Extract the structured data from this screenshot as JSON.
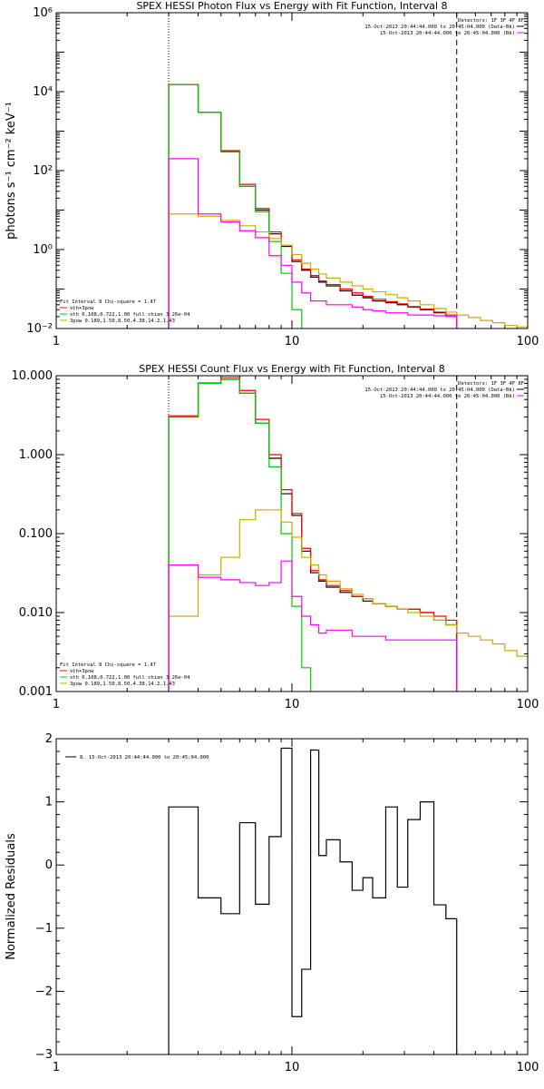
{
  "chart_data": [
    {
      "type": "line",
      "step": true,
      "title": "SPEX HESSI Photon Flux vs Energy with Fit Function, Interval 8",
      "ylabel": "photons s⁻¹ cm⁻² keV⁻¹",
      "xlabel": "",
      "xscale": "log",
      "yscale": "log",
      "xlim": [
        1,
        100
      ],
      "ylim": [
        0.01,
        1000000
      ],
      "xticks": [
        {
          "v": 1,
          "label": "1"
        },
        {
          "v": 10,
          "label": "10"
        },
        {
          "v": 100,
          "label": "100"
        }
      ],
      "yticks": [
        {
          "v": 0.01,
          "label": "10⁻²"
        },
        {
          "v": 1,
          "label": "10⁰"
        },
        {
          "v": 100,
          "label": "10²"
        },
        {
          "v": 10000,
          "label": "10⁴"
        },
        {
          "v": 1000000,
          "label": "10⁶"
        }
      ],
      "vlines": [
        {
          "x": 3,
          "style": "dotted"
        },
        {
          "x": 50,
          "style": "dashed"
        }
      ],
      "legend_tr": {
        "title": "Detectors: 1F 3F 4F 8F",
        "entries": [
          {
            "text": "15-Oct-2013 20:44:44.000 to 20:45:04.000 (Data-Bk)",
            "color": "#000000"
          },
          {
            "text": "15-Oct-2013 20:44:44.000 to 20:45:04.000 (Bk)",
            "color": "#ff00ff"
          }
        ]
      },
      "legend_bl": {
        "title": "Fit Interval 8   Chi-square = 1.47",
        "entries": [
          {
            "text": "vth+3pow",
            "color": "#ff0000"
          },
          {
            "text": "vth 0.108,0.722,1.00  full chian 3.26e-04",
            "color": "#00cc00"
          },
          {
            "text": "3pow 0.189,1.50,8.50,4.38,14.2,1.43",
            "color": "#ccaa00"
          }
        ]
      },
      "edges": [
        3,
        4,
        5,
        6,
        7,
        8,
        9,
        10,
        11,
        12,
        13,
        14,
        16,
        18,
        20,
        22,
        25,
        28,
        31,
        35,
        40,
        45,
        50
      ],
      "series": [
        {
          "name": "15-Oct-2013 20:44:44.000 to 20:45:04.000 (Data-Bk)",
          "color": "#000000",
          "values": [
            15000,
            3000,
            300,
            40,
            10,
            2.5,
            1.2,
            0.5,
            0.3,
            0.2,
            0.15,
            0.12,
            0.09,
            0.07,
            0.06,
            0.05,
            0.045,
            0.04,
            0.035,
            0.03,
            0.025,
            0.02
          ]
        },
        {
          "name": "vth+3pow",
          "color": "#ff0000",
          "values": [
            15000,
            3000,
            320,
            45,
            11,
            2.8,
            1.3,
            0.55,
            0.32,
            0.22,
            0.16,
            0.13,
            0.1,
            0.08,
            0.065,
            0.055,
            0.048,
            0.042,
            0.036,
            0.031,
            0.026,
            0.022
          ]
        },
        {
          "name": "vth",
          "color": "#00cc00",
          "values": [
            15000,
            3000,
            300,
            40,
            9,
            1.6,
            0.25,
            0.03,
            0.005
          ]
        },
        {
          "name": "3pow",
          "color": "#ccaa00",
          "ext_edges": [
            50,
            56,
            63,
            71,
            80,
            90,
            100
          ],
          "values": [
            8,
            7,
            5.5,
            4,
            2.8,
            1.9,
            1.3,
            0.75,
            0.45,
            0.32,
            0.24,
            0.19,
            0.15,
            0.12,
            0.1,
            0.085,
            0.072,
            0.06,
            0.05,
            0.04,
            0.032,
            0.026
          ],
          "ext_values": [
            0.022,
            0.019,
            0.016,
            0.014,
            0.012,
            0.011
          ]
        },
        {
          "name": "15-Oct-2013 20:44:44.000 to 20:45:04.000 (Bk)",
          "color": "#ff00ff",
          "values": [
            200,
            8,
            5,
            3,
            2,
            0.7,
            0.4,
            0.15,
            0.08,
            0.05,
            0.05,
            0.04,
            0.04,
            0.035,
            0.03,
            0.028,
            0.025,
            0.025,
            0.022,
            0.022,
            0.021,
            0.02
          ]
        }
      ]
    },
    {
      "type": "line",
      "step": true,
      "title": "SPEX HESSI Count Flux vs Energy with Fit Function, Interval 8",
      "ylabel": "",
      "xlabel": "",
      "xscale": "log",
      "yscale": "log",
      "xlim": [
        1,
        100
      ],
      "ylim": [
        0.001,
        10
      ],
      "xticks": [
        {
          "v": 1,
          "label": "1"
        },
        {
          "v": 10,
          "label": "10"
        },
        {
          "v": 100,
          "label": "100"
        }
      ],
      "yticks": [
        {
          "v": 0.001,
          "label": "0.001"
        },
        {
          "v": 0.01,
          "label": "0.010"
        },
        {
          "v": 0.1,
          "label": "0.100"
        },
        {
          "v": 1,
          "label": "1.000"
        },
        {
          "v": 10,
          "label": "10.000"
        }
      ],
      "vlines": [
        {
          "x": 3,
          "style": "dotted"
        },
        {
          "x": 50,
          "style": "dashed"
        }
      ],
      "legend_tr": {
        "title": "Detectors: 1F 3F 4F 8F",
        "entries": [
          {
            "text": "15-Oct-2013 20:44:44.000 to 20:45:04.000 (Data-Bk)",
            "color": "#000000"
          },
          {
            "text": "15-Oct-2013 20:44:44.000 to 20:45:04.000 (Bk)",
            "color": "#ff00ff"
          }
        ]
      },
      "legend_bl": {
        "title": "Fit Interval 8   Chi-square = 1.47",
        "entries": [
          {
            "text": "vth+3pow",
            "color": "#ff0000"
          },
          {
            "text": "vth 0.108,0.722,1.00  full chian 3.26e-04",
            "color": "#00cc00"
          },
          {
            "text": "3pow 0.189,1.50,8.50,4.38,14.2,1.43",
            "color": "#ccaa00"
          }
        ]
      },
      "edges": [
        3,
        4,
        5,
        6,
        7,
        8,
        9,
        10,
        11,
        12,
        13,
        14,
        16,
        18,
        20,
        22,
        25,
        28,
        31,
        35,
        40,
        45,
        50
      ],
      "series": [
        {
          "name": "15-Oct-2013 20:44:44.000 to 20:45:04.000 (Data-Bk)",
          "color": "#000000",
          "values": [
            3.0,
            8.0,
            9.0,
            6.0,
            2.5,
            0.9,
            0.32,
            0.17,
            0.06,
            0.032,
            0.025,
            0.021,
            0.018,
            0.016,
            0.014,
            0.013,
            0.012,
            0.011,
            0.011,
            0.01,
            0.008,
            0.007
          ]
        },
        {
          "name": "vth+3pow",
          "color": "#ff0000",
          "values": [
            3.1,
            8.1,
            9.5,
            6.5,
            2.8,
            1.0,
            0.36,
            0.18,
            0.065,
            0.034,
            0.026,
            0.022,
            0.019,
            0.016,
            0.015,
            0.013,
            0.012,
            0.011,
            0.011,
            0.01,
            0.009,
            0.008
          ]
        },
        {
          "name": "vth",
          "color": "#00cc00",
          "values": [
            3.0,
            8.0,
            9.0,
            6.0,
            2.5,
            0.7,
            0.1,
            0.012,
            0.002
          ]
        },
        {
          "name": "3pow",
          "color": "#ccaa00",
          "ext_edges": [
            50,
            56,
            63,
            71,
            80,
            90,
            100
          ],
          "values": [
            0.009,
            0.03,
            0.05,
            0.15,
            0.2,
            0.2,
            0.14,
            0.09,
            0.05,
            0.04,
            0.03,
            0.025,
            0.02,
            0.017,
            0.015,
            0.013,
            0.012,
            0.011,
            0.01,
            0.009,
            0.008,
            0.007
          ],
          "ext_values": [
            0.0055,
            0.005,
            0.0045,
            0.004,
            0.0033,
            0.0028
          ]
        },
        {
          "name": "15-Oct-2013 20:44:44.000 to 20:45:04.000 (Bk)",
          "color": "#ff00ff",
          "values": [
            0.04,
            0.028,
            0.026,
            0.024,
            0.022,
            0.024,
            0.045,
            0.016,
            0.009,
            0.007,
            0.0055,
            0.006,
            0.006,
            0.005,
            0.005,
            0.005,
            0.0045,
            0.0045,
            0.0045,
            0.0045,
            0.0045,
            0.0045
          ]
        }
      ]
    },
    {
      "type": "line",
      "step": true,
      "title": "",
      "ylabel": "Normalized Residuals",
      "xlabel": "",
      "xscale": "log",
      "yscale": "linear",
      "xlim": [
        1,
        100
      ],
      "ylim": [
        -3,
        2
      ],
      "xticks": [
        {
          "v": 1,
          "label": "1"
        },
        {
          "v": 10,
          "label": "10"
        },
        {
          "v": 100,
          "label": "100"
        }
      ],
      "yticks": [
        {
          "v": -3,
          "label": "−3"
        },
        {
          "v": -2,
          "label": "−2"
        },
        {
          "v": -1,
          "label": "−1"
        },
        {
          "v": 0,
          "label": "0"
        },
        {
          "v": 1,
          "label": "1"
        },
        {
          "v": 2,
          "label": "2"
        }
      ],
      "vlines": [],
      "legend_tl": {
        "entries": [
          {
            "text": "8. 15-Oct-2013 20:44:44.000 to 20:45:04.000",
            "color": "#000000"
          }
        ]
      },
      "edges": [
        3,
        4,
        5,
        6,
        7,
        8,
        9,
        10,
        11,
        12,
        13,
        14,
        16,
        18,
        20,
        22,
        25,
        28,
        31,
        35,
        40,
        45,
        50
      ],
      "series": [
        {
          "name": "8. 15-Oct-2013 20:44:44.000 to 20:45:04.000",
          "color": "#000000",
          "drop_to": -3,
          "values": [
            0.92,
            -0.52,
            -0.77,
            0.67,
            -0.62,
            0.45,
            1.85,
            -2.4,
            -1.65,
            1.82,
            0.15,
            0.4,
            0.05,
            -0.4,
            -0.2,
            -0.52,
            0.92,
            -0.35,
            0.72,
            1.0,
            -0.63,
            -0.85
          ]
        }
      ]
    }
  ]
}
